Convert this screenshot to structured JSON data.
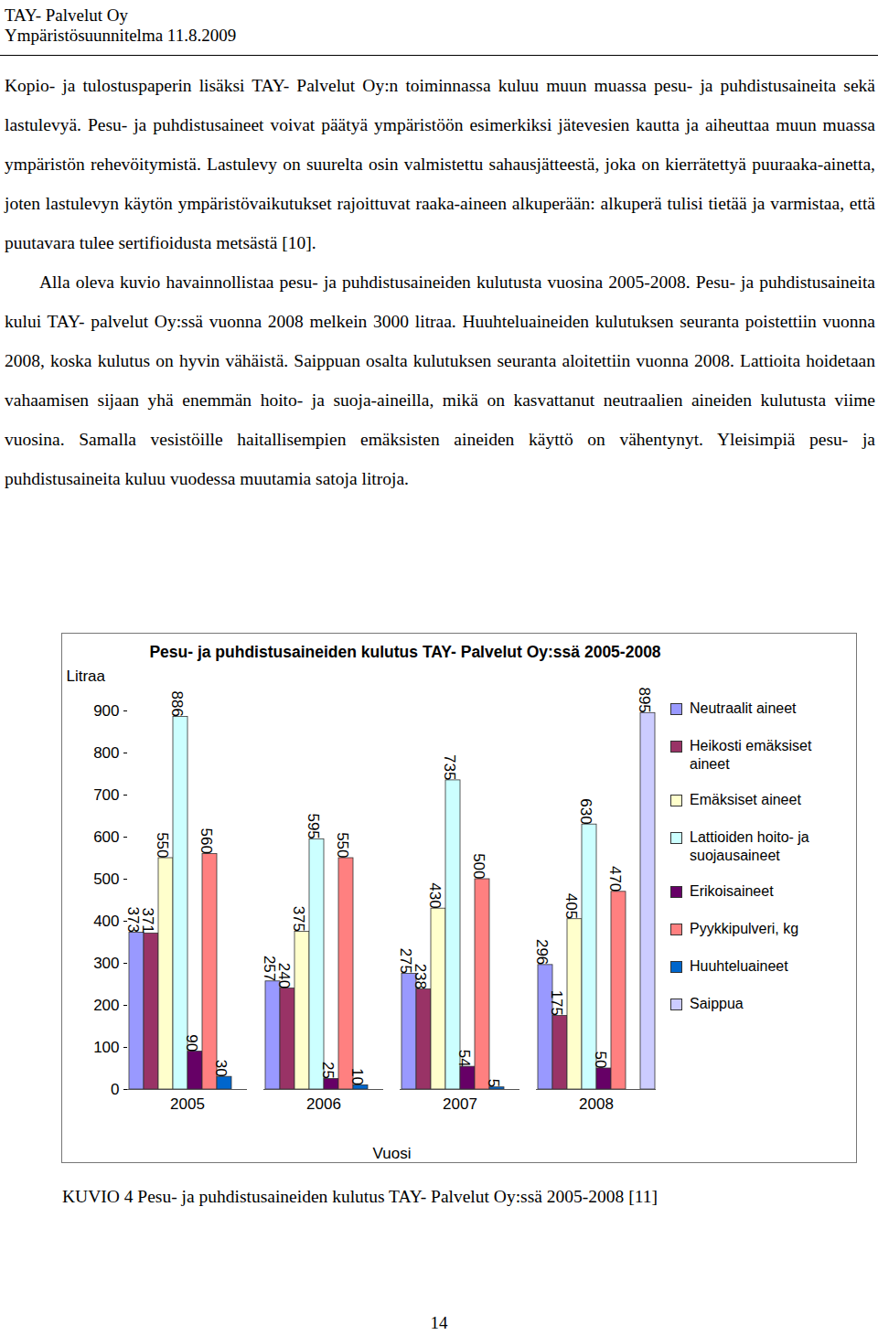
{
  "header": {
    "company": "TAY- Palvelut Oy",
    "document": "Ympäristösuunnitelma 11.8.2009"
  },
  "paragraphs": [
    "Kopio- ja tulostuspaperin lisäksi TAY- Palvelut Oy:n toiminnassa kuluu muun muassa pesu- ja puhdistusaineita sekä lastulevyä. Pesu- ja puhdistusaineet voivat päätyä ympäristöön esimerkiksi jätevesien kautta ja aiheuttaa muun muassa ympäristön rehevöitymistä. Lastulevy on suurelta osin valmistettu sahausjätteestä, joka on kierrätettyä puuraaka-ainetta, joten lastulevyn käytön ympäristövaikutukset rajoittuvat raaka-aineen alkuperään: alkuperä tulisi tietää ja varmistaa, että puutavara tulee sertifioidusta metsästä [10].",
    "Alla oleva kuvio havainnollistaa pesu- ja puhdistusaineiden kulutusta vuosina 2005-2008. Pesu- ja puhdistusaineita kului TAY- palvelut Oy:ssä vuonna 2008 melkein 3000 litraa. Huuhteluaineiden kulutuksen seuranta poistettiin vuonna 2008, koska kulutus on hyvin vähäistä. Saippuan osalta kulutuksen seuranta aloitettiin vuonna 2008. Lattioita hoidetaan vahaamisen sijaan yhä enemmän hoito- ja suoja-aineilla, mikä on kasvattanut neutraalien aineiden kulutusta viime vuosina. Samalla vesistöille haitallisempien emäksisten aineiden käyttö on vähentynyt. Yleisimpiä pesu- ja puhdistusaineita kuluu vuodessa muutamia satoja litroja."
  ],
  "chart_data": {
    "type": "bar",
    "title": "Pesu- ja puhdistusaineiden kulutus TAY- Palvelut Oy:ssä 2005-2008",
    "y_label": "Litraa",
    "x_label": "Vuosi",
    "categories": [
      "2005",
      "2006",
      "2007",
      "2008"
    ],
    "series": [
      {
        "name": "Neutraalit aineet",
        "color": "#9999ff",
        "values": [
          373,
          257,
          275,
          296
        ]
      },
      {
        "name": "Heikosti emäksiset aineet",
        "color": "#993366",
        "values": [
          371,
          240,
          238,
          175
        ]
      },
      {
        "name": "Emäksiset aineet",
        "color": "#ffffcc",
        "values": [
          550,
          375,
          430,
          405
        ]
      },
      {
        "name": "Lattioiden hoito- ja suojausaineet",
        "color": "#ccffff",
        "values": [
          886,
          595,
          735,
          630
        ]
      },
      {
        "name": "Erikoisaineet",
        "color": "#660066",
        "values": [
          90,
          25,
          54,
          50
        ]
      },
      {
        "name": "Pyykkipulveri, kg",
        "color": "#ff8080",
        "values": [
          560,
          550,
          500,
          470
        ]
      },
      {
        "name": "Huuhteluaineet",
        "color": "#0066cc",
        "values": [
          30,
          10,
          5,
          null
        ]
      },
      {
        "name": "Saippua",
        "color": "#ccccff",
        "values": [
          null,
          null,
          null,
          895
        ]
      }
    ],
    "ylim": [
      0,
      900
    ],
    "yticks": [
      0,
      100,
      200,
      300,
      400,
      500,
      600,
      700,
      800,
      900
    ],
    "grid": false,
    "legend": "right",
    "data_labels": true
  },
  "caption": "KUVIO 4 Pesu- ja puhdistusaineiden kulutus TAY- Palvelut Oy:ssä 2005-2008 [11]",
  "page_number": 14
}
